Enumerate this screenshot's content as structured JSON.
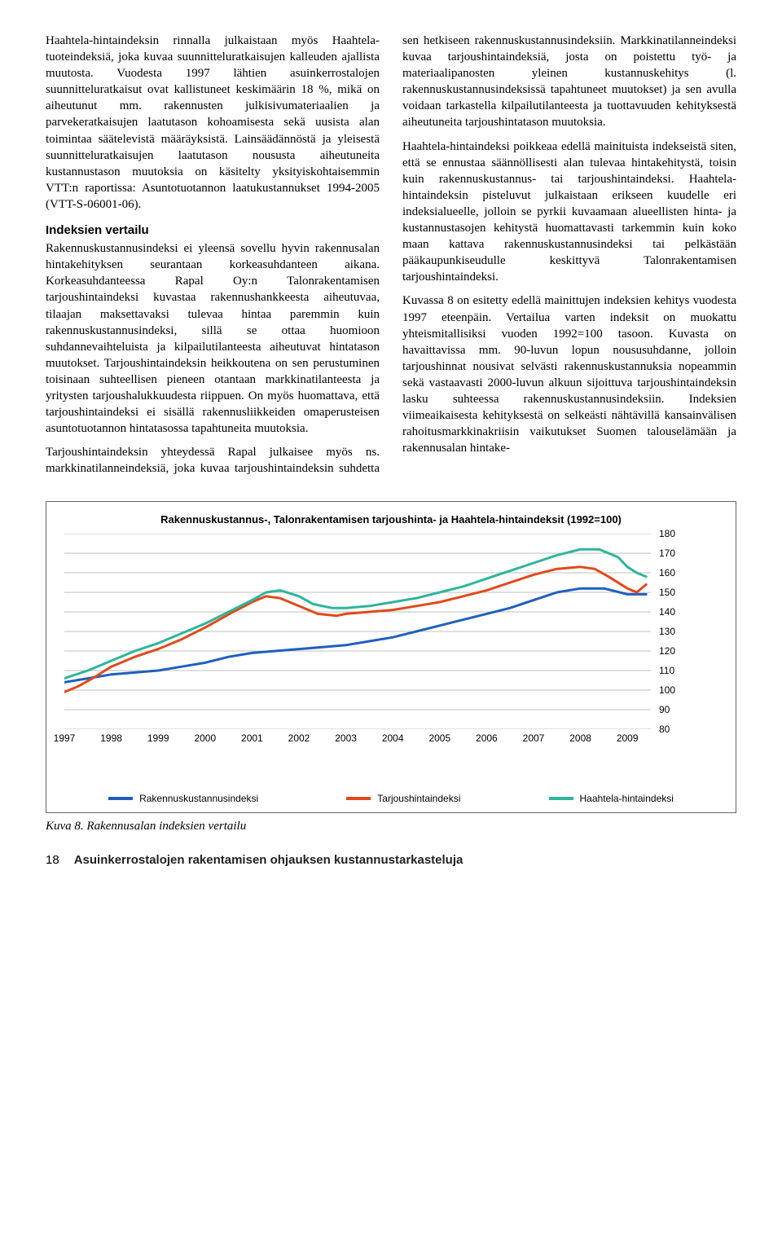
{
  "body": {
    "p1": "Haahtela-hintaindeksin rinnalla julkaistaan myös Haahtela-tuoteindeksiä, joka kuvaa suunnitteluratkaisujen kalleuden ajallista muutosta. Vuodesta 1997 lähtien asuinkerrostalojen suunnitteluratkaisut ovat kallistuneet keskimäärin 18 %, mikä on aiheutunut mm. rakennusten julkisivumateriaalien ja parvekeratkaisujen laatutason kohoamisesta sekä uusista alan toimintaa säätelevistä määräyksistä. Lainsäädännöstä ja yleisestä suunnitteluratkaisujen laatutason noususta aiheutuneita kustannustason muutoksia on käsitelty yksityiskohtaisemmin VTT:n raportissa: Asuntotuotannon laatukustannukset 1994-2005 (VTT-S-06001-06).",
    "h1": "Indeksien vertailu",
    "p2": "Rakennuskustannusindeksi ei yleensä sovellu hyvin rakennusalan hintakehityksen seurantaan korkeasuhdanteen aikana. Korkeasuhdanteessa Rapal Oy:n Talonrakentamisen tarjoushintaindeksi kuvastaa rakennushankkeesta aiheutuvaa, tilaajan maksettavaksi tulevaa hintaa paremmin kuin rakennuskustannusindeksi, sillä se ottaa huomioon suhdannevaihteluista ja kilpailutilanteesta aiheutuvat hintatason muutokset. Tarjoushintaindeksin heikkoutena on sen perustuminen toisinaan suhteellisen pieneen otantaan markkinatilanteesta ja yritysten tarjoushalukkuudesta riippuen. On myös huomattava, että tarjoushintaindeksi ei sisällä rakennusliikkeiden omaperusteisen asuntotuotannon hintatasossa tapahtuneita muutoksia.",
    "p3": "Tarjoushintaindeksin yhteydessä Rapal julkaisee myös ns. markkinatilanneindeksiä, joka kuvaa tarjoushintaindeksin suhdetta sen hetkiseen rakennuskustannusindeksiin. Markkinatilanneindeksi kuvaa tarjoushintaindeksiä, josta on poistettu työ- ja materiaalipanosten yleinen kustannuskehitys (l. rakennuskustannusindeksissä tapahtuneet muutokset) ja sen avulla voidaan tarkastella kilpailutilanteesta ja tuottavuuden kehityksestä aiheutuneita tarjoushintatason muutoksia.",
    "p4": "Haahtela-hintaindeksi poikkeaa edellä mainituista indekseistä siten, että se ennustaa säännöllisesti alan tulevaa hintakehitystä, toisin kuin rakennuskustannus- tai tarjoushintaindeksi. Haahtela-hintaindeksin pisteluvut julkaistaan erikseen kuudelle eri indeksialueelle, jolloin se pyrkii kuvaamaan alueellisten hinta- ja kustannustasojen kehitystä huomattavasti tarkemmin kuin koko maan kattava rakennuskustannusindeksi tai pelkästään pääkaupunkiseudulle keskittyvä Talonrakentamisen tarjoushintaindeksi.",
    "p5": "Kuvassa 8 on esitetty edellä mainittujen indeksien kehitys vuodesta 1997 eteenpäin. Vertailua varten indeksit on muokattu yhteismitallisiksi vuoden 1992=100 tasoon. Kuvasta on havaittavissa mm. 90-luvun lopun noususuhdanne, jolloin tarjoushinnat nousivat selvästi rakennuskustannuksia nopeammin sekä vastaavasti 2000-luvun alkuun sijoittuva tarjoushintaindeksin lasku suhteessa rakennuskustannusindeksiin. Indeksien viimeaikaisesta kehityksestä on selkeästi nähtävillä kansainvälisen rahoitusmarkkinakriisin vaikutukset Suomen talouselämään ja rakennusalan hintake-"
  },
  "chart": {
    "type": "line",
    "title": "Rakennuskustannus-, Talonrakentamisen tarjoushinta- ja Haahtela-hintaindeksit (1992=100)",
    "background_color": "#ffffff",
    "grid_color": "#bfbfbf",
    "ylim": [
      80,
      180
    ],
    "ytick_step": 10,
    "yticks": [
      80,
      90,
      100,
      110,
      120,
      130,
      140,
      150,
      160,
      170,
      180
    ],
    "xlabels": [
      "1997",
      "1998",
      "1999",
      "2000",
      "2001",
      "2002",
      "2003",
      "2004",
      "2005",
      "2006",
      "2007",
      "2008",
      "2009"
    ],
    "x_domain": [
      1997,
      2009.5
    ],
    "line_width": 3,
    "series": [
      {
        "name": "Rakennuskustannusindeksi",
        "color": "#1f5fbf",
        "points": [
          [
            1997,
            104
          ],
          [
            1997.5,
            106
          ],
          [
            1998,
            108
          ],
          [
            1998.5,
            109
          ],
          [
            1999,
            110
          ],
          [
            1999.5,
            112
          ],
          [
            2000,
            114
          ],
          [
            2000.5,
            117
          ],
          [
            2001,
            119
          ],
          [
            2001.5,
            120
          ],
          [
            2002,
            121
          ],
          [
            2002.5,
            122
          ],
          [
            2003,
            123
          ],
          [
            2003.5,
            125
          ],
          [
            2004,
            127
          ],
          [
            2004.5,
            130
          ],
          [
            2005,
            133
          ],
          [
            2005.5,
            136
          ],
          [
            2006,
            139
          ],
          [
            2006.5,
            142
          ],
          [
            2007,
            146
          ],
          [
            2007.5,
            150
          ],
          [
            2008,
            152
          ],
          [
            2008.5,
            152
          ],
          [
            2009,
            149
          ],
          [
            2009.4,
            149
          ]
        ]
      },
      {
        "name": "Tarjoushintaindeksi",
        "color": "#e04a1a",
        "points": [
          [
            1997,
            99
          ],
          [
            1997.3,
            102
          ],
          [
            1997.6,
            106
          ],
          [
            1998,
            112
          ],
          [
            1998.5,
            117
          ],
          [
            1999,
            121
          ],
          [
            1999.5,
            126
          ],
          [
            2000,
            132
          ],
          [
            2000.3,
            136
          ],
          [
            2000.6,
            140
          ],
          [
            2001,
            145
          ],
          [
            2001.3,
            148
          ],
          [
            2001.6,
            147
          ],
          [
            2002,
            143
          ],
          [
            2002.4,
            139
          ],
          [
            2002.8,
            138
          ],
          [
            2003,
            139
          ],
          [
            2003.5,
            140
          ],
          [
            2004,
            141
          ],
          [
            2004.5,
            143
          ],
          [
            2005,
            145
          ],
          [
            2005.5,
            148
          ],
          [
            2006,
            151
          ],
          [
            2006.5,
            155
          ],
          [
            2007,
            159
          ],
          [
            2007.5,
            162
          ],
          [
            2008,
            163
          ],
          [
            2008.3,
            162
          ],
          [
            2008.6,
            158
          ],
          [
            2009,
            152
          ],
          [
            2009.2,
            150
          ],
          [
            2009.4,
            154
          ]
        ]
      },
      {
        "name": "Haahtela-hintaindeksi",
        "color": "#2fb59a",
        "points": [
          [
            1997,
            106
          ],
          [
            1997.5,
            110
          ],
          [
            1998,
            115
          ],
          [
            1998.5,
            120
          ],
          [
            1999,
            124
          ],
          [
            1999.5,
            129
          ],
          [
            2000,
            134
          ],
          [
            2000.5,
            140
          ],
          [
            2001,
            146
          ],
          [
            2001.3,
            150
          ],
          [
            2001.6,
            151
          ],
          [
            2002,
            148
          ],
          [
            2002.3,
            144
          ],
          [
            2002.7,
            142
          ],
          [
            2003,
            142
          ],
          [
            2003.5,
            143
          ],
          [
            2004,
            145
          ],
          [
            2004.5,
            147
          ],
          [
            2005,
            150
          ],
          [
            2005.5,
            153
          ],
          [
            2006,
            157
          ],
          [
            2006.5,
            161
          ],
          [
            2007,
            165
          ],
          [
            2007.5,
            169
          ],
          [
            2008,
            172
          ],
          [
            2008.4,
            172
          ],
          [
            2008.8,
            168
          ],
          [
            2009,
            163
          ],
          [
            2009.2,
            160
          ],
          [
            2009.4,
            158
          ]
        ]
      }
    ]
  },
  "caption": "Kuva 8. Rakennusalan indeksien vertailu",
  "footer": {
    "page": "18",
    "title": "Asuinkerrostalojen rakentamisen ohjauksen kustannustarkasteluja"
  }
}
